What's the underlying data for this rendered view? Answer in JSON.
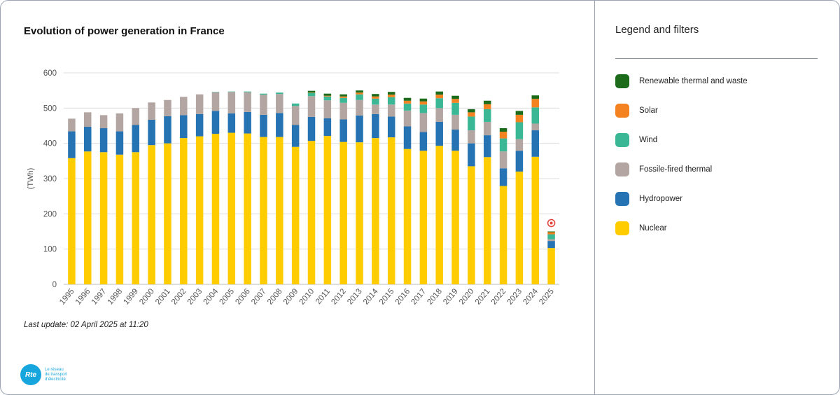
{
  "title": "Evolution of power generation in France",
  "last_update": "Last update: 02 April 2025 at 11:20",
  "logo": {
    "mark": "Rte",
    "lines": [
      "Le réseau",
      "de transport",
      "d'électricité"
    ]
  },
  "legend": {
    "title": "Legend and filters",
    "items": [
      {
        "label": "Renewable thermal and waste",
        "color": "#1b6b1b"
      },
      {
        "label": "Solar",
        "color": "#f58220"
      },
      {
        "label": "Wind",
        "color": "#3ab795"
      },
      {
        "label": "Fossile-fired thermal",
        "color": "#b3a6a2"
      },
      {
        "label": "Hydropower",
        "color": "#2673b3"
      },
      {
        "label": "Nuclear",
        "color": "#ffcc00"
      }
    ]
  },
  "chart_data": {
    "type": "bar",
    "stacked": true,
    "ylabel": "(TWh)",
    "ylim": [
      0,
      600
    ],
    "yticks": [
      0,
      100,
      200,
      300,
      400,
      500,
      600
    ],
    "grid": true,
    "categories": [
      "1995",
      "1996",
      "1997",
      "1998",
      "1999",
      "2000",
      "2001",
      "2002",
      "2003",
      "2004",
      "2005",
      "2006",
      "2007",
      "2008",
      "2009",
      "2010",
      "2011",
      "2012",
      "2013",
      "2014",
      "2015",
      "2016",
      "2017",
      "2018",
      "2019",
      "2020",
      "2021",
      "2022",
      "2023",
      "2024",
      "2025"
    ],
    "series": [
      {
        "name": "Nuclear",
        "color": "#ffcc00",
        "values": [
          358,
          377,
          375,
          368,
          375,
          395,
          400,
          415,
          420,
          427,
          430,
          428,
          418,
          418,
          390,
          407,
          421,
          404,
          403,
          415,
          417,
          384,
          379,
          393,
          379,
          335,
          361,
          279,
          320,
          362,
          103
        ]
      },
      {
        "name": "Hydropower",
        "color": "#2673b3",
        "values": [
          76,
          70,
          68,
          66,
          77,
          72,
          77,
          65,
          63,
          65,
          55,
          61,
          63,
          68,
          62,
          68,
          50,
          64,
          76,
          68,
          59,
          64,
          53,
          68,
          60,
          65,
          62,
          50,
          59,
          75,
          20
        ]
      },
      {
        "name": "Fossile-fired thermal",
        "color": "#b3a6a2",
        "values": [
          36,
          41,
          37,
          51,
          48,
          49,
          46,
          52,
          56,
          53,
          61,
          56,
          57,
          54,
          54,
          59,
          51,
          47,
          44,
          27,
          34,
          45,
          54,
          39,
          42,
          37,
          38,
          48,
          33,
          19,
          5
        ]
      },
      {
        "name": "Wind",
        "color": "#3ab795",
        "values": [
          0,
          0,
          0,
          0,
          0,
          0,
          0,
          0,
          0,
          1,
          1,
          2,
          3,
          4,
          7,
          9,
          11,
          14,
          16,
          17,
          21,
          20,
          24,
          28,
          34,
          39,
          36,
          37,
          48,
          46,
          14
        ]
      },
      {
        "name": "Solar",
        "color": "#f58220",
        "values": [
          0,
          0,
          0,
          0,
          0,
          0,
          0,
          0,
          0,
          0,
          0,
          0,
          0,
          0,
          0,
          1,
          2,
          4,
          5,
          6,
          7,
          8,
          9,
          10,
          11,
          12,
          14,
          19,
          21,
          24,
          6
        ]
      },
      {
        "name": "Renewable thermal and waste",
        "color": "#1b6b1b",
        "values": [
          0,
          0,
          0,
          0,
          0,
          0,
          0,
          0,
          0,
          0,
          0,
          0,
          0,
          0,
          0,
          5,
          6,
          6,
          6,
          7,
          8,
          8,
          8,
          9,
          9,
          9,
          10,
          10,
          11,
          10,
          2
        ]
      }
    ],
    "annotations": [
      {
        "category": "2025",
        "icon": "partial-year-icon"
      }
    ]
  }
}
